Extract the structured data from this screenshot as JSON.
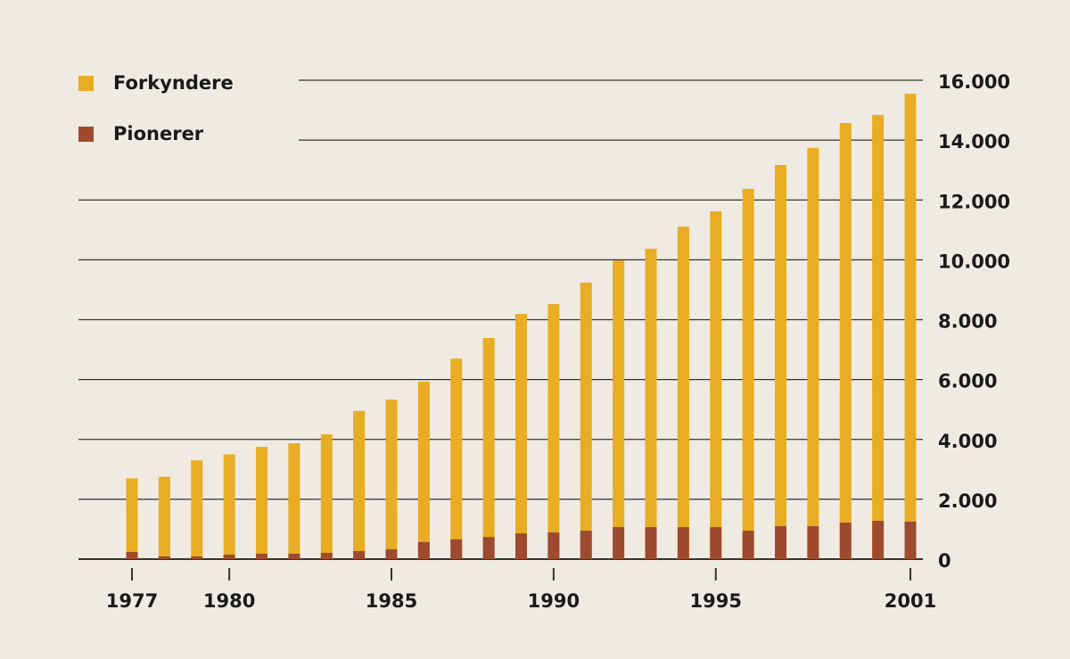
{
  "chart_data": {
    "type": "bar",
    "x": [
      1977,
      1978,
      1979,
      1980,
      1981,
      1982,
      1983,
      1984,
      1985,
      1986,
      1987,
      1988,
      1989,
      1990,
      1991,
      1992,
      1993,
      1994,
      1995,
      1996,
      1997,
      1998,
      1999,
      2000,
      2001
    ],
    "xlim": [
      1976,
      2001.5
    ],
    "xticks": [
      1977,
      1980,
      1985,
      1990,
      1995,
      2001
    ],
    "series": [
      {
        "name": "Forkyndere",
        "color": "#e8ad22",
        "values": [
          2700,
          2750,
          3300,
          3500,
          3750,
          3870,
          4170,
          4950,
          5330,
          5930,
          6700,
          7390,
          8190,
          8520,
          9240,
          9980,
          10370,
          11110,
          11620,
          12370,
          13170,
          13740,
          14570,
          14840,
          15550
        ]
      },
      {
        "name": "Pionerer",
        "color": "#9e4a2e",
        "values": [
          240,
          90,
          90,
          150,
          180,
          180,
          210,
          270,
          330,
          570,
          660,
          740,
          860,
          890,
          950,
          1070,
          1070,
          1070,
          1070,
          950,
          1100,
          1100,
          1220,
          1280,
          1250
        ]
      }
    ],
    "ylim": [
      0,
      16000
    ],
    "yticks": [
      0,
      {
        "value": 2000,
        "label": "2.000"
      },
      {
        "value": 4000,
        "label": "4.000"
      },
      {
        "value": 6000,
        "label": "6.000"
      },
      {
        "value": 8000,
        "label": "8.000"
      },
      {
        "value": 10000,
        "label": "10.000"
      },
      {
        "value": 12000,
        "label": "12.000"
      },
      {
        "value": 14000,
        "label": "14.000"
      },
      {
        "value": 16000,
        "label": "16.000"
      }
    ],
    "grid": true,
    "legend": "top-left"
  }
}
